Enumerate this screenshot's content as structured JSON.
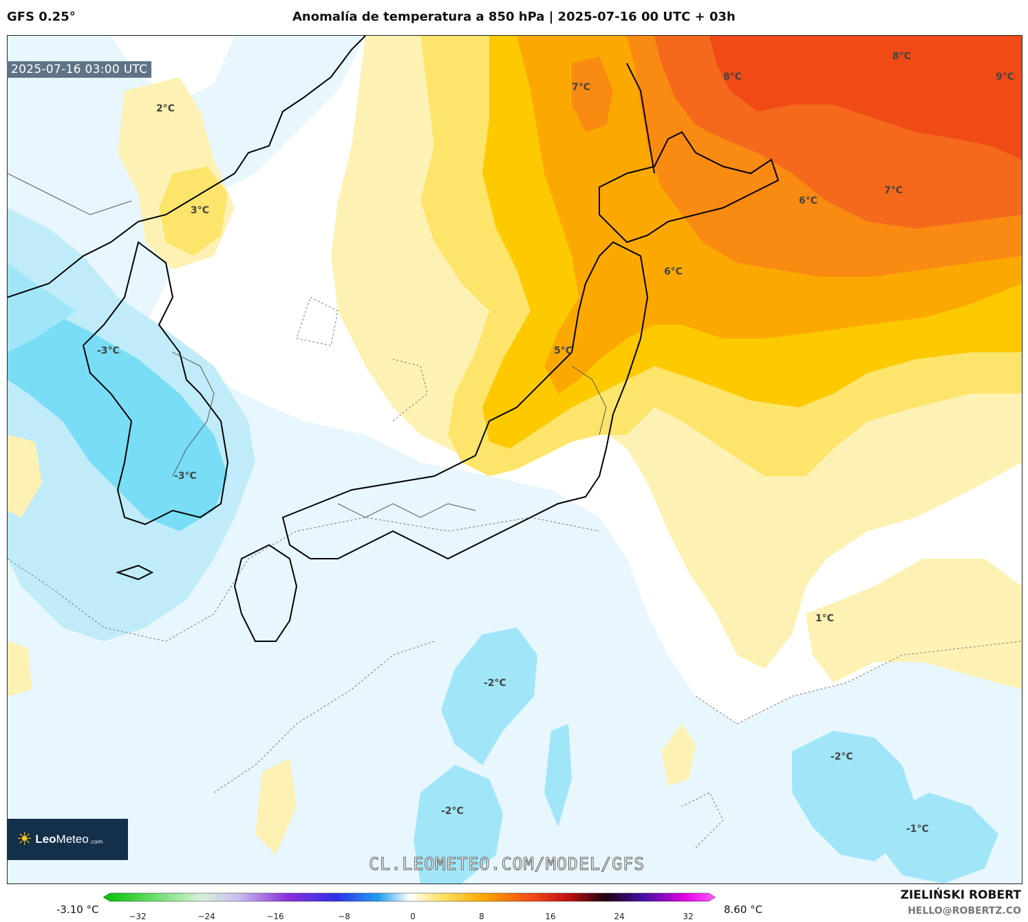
{
  "header": {
    "model": "GFS 0.25°",
    "title": "Anomalía de temperatura a 850 hPa | 2025-07-16 00 UTC + 03h"
  },
  "map": {
    "valid_time": "2025-07-16 03:00 UTC",
    "region": "Japan / Korea / Sea of Japan",
    "contour_labels": [
      "2°C",
      "3°C",
      "-3°C",
      "-3°C",
      "7°C",
      "8°C",
      "8°C",
      "9°C",
      "6°C",
      "7°C",
      "6°C",
      "5°C",
      "1°C",
      "-2°C",
      "-2°C",
      "-2°C",
      "-1°C"
    ],
    "watermark": "CL.LEOMETEO.COM/MODEL/GFS"
  },
  "logo": {
    "brand_bold": "Leo",
    "brand_regular": "Meteo",
    "domain": ".com"
  },
  "colorbar": {
    "min_label": "-3.10 °C",
    "max_label": "8.60 °C",
    "ticks": [
      "−32",
      "−24",
      "−16",
      "−8",
      "0",
      "8",
      "16",
      "24",
      "32"
    ]
  },
  "credit": {
    "name": "ZIELIŃSKI ROBERT",
    "email": "HELLO@ROBERTZ.CO"
  },
  "colors": {
    "cold_1": "#e8f6fd",
    "cold_2": "#c0ecf9",
    "cold_3": "#a0e6f8",
    "cold_4": "#78ddf5",
    "warm_1": "#fdf2b4",
    "warm_2": "#fde46a",
    "warm_3": "#fdc900",
    "warm_4": "#fba900",
    "warm_5": "#f98a12",
    "warm_6": "#f4691c",
    "warm_7": "#f04a16"
  }
}
